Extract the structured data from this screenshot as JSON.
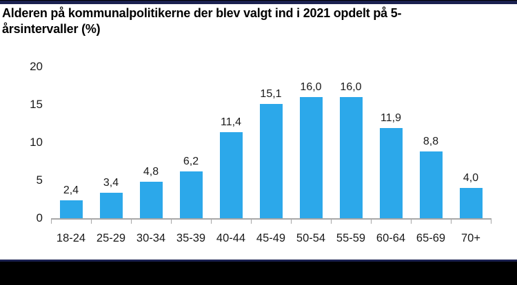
{
  "header": {
    "title_lines": [
      "Alderen på kommunalpolitikerne der blev valgt ind i 2021 opdelt på 5-",
      "årsintervaller (%)"
    ]
  },
  "colors": {
    "bar_fill": "#2CA8EA",
    "axis_line": "#A6A6A6",
    "text": "#000000",
    "top_bar": "#1B2150",
    "bottom_accent": "#1B2150",
    "bottom_bar": "#000000",
    "background": "#FFFFFF"
  },
  "chart_data": {
    "type": "bar",
    "title": "Alderen på kommunalpolitikerne der blev valgt ind i 2021 opdelt på 5-årsintervaller (%)",
    "categories": [
      "18-24",
      "25-29",
      "30-34",
      "35-39",
      "40-44",
      "45-49",
      "50-54",
      "55-59",
      "60-64",
      "65-69",
      "70+"
    ],
    "values": [
      2.4,
      3.4,
      4.8,
      6.2,
      11.4,
      15.1,
      16.0,
      16.0,
      11.9,
      8.8,
      4.0
    ],
    "value_labels": [
      "2,4",
      "3,4",
      "4,8",
      "6,2",
      "11,4",
      "15,1",
      "16,0",
      "16,0",
      "11,9",
      "8,8",
      "4,0"
    ],
    "xlabel": "",
    "ylabel": "",
    "ylim": [
      0,
      20
    ],
    "yticks": [
      0,
      5,
      10,
      15,
      20
    ],
    "ytick_labels": [
      "0",
      "5",
      "10",
      "15",
      "20"
    ],
    "decimal_separator": ",",
    "grid": false,
    "legend_position": "none",
    "bar_color": "#2CA8EA"
  }
}
